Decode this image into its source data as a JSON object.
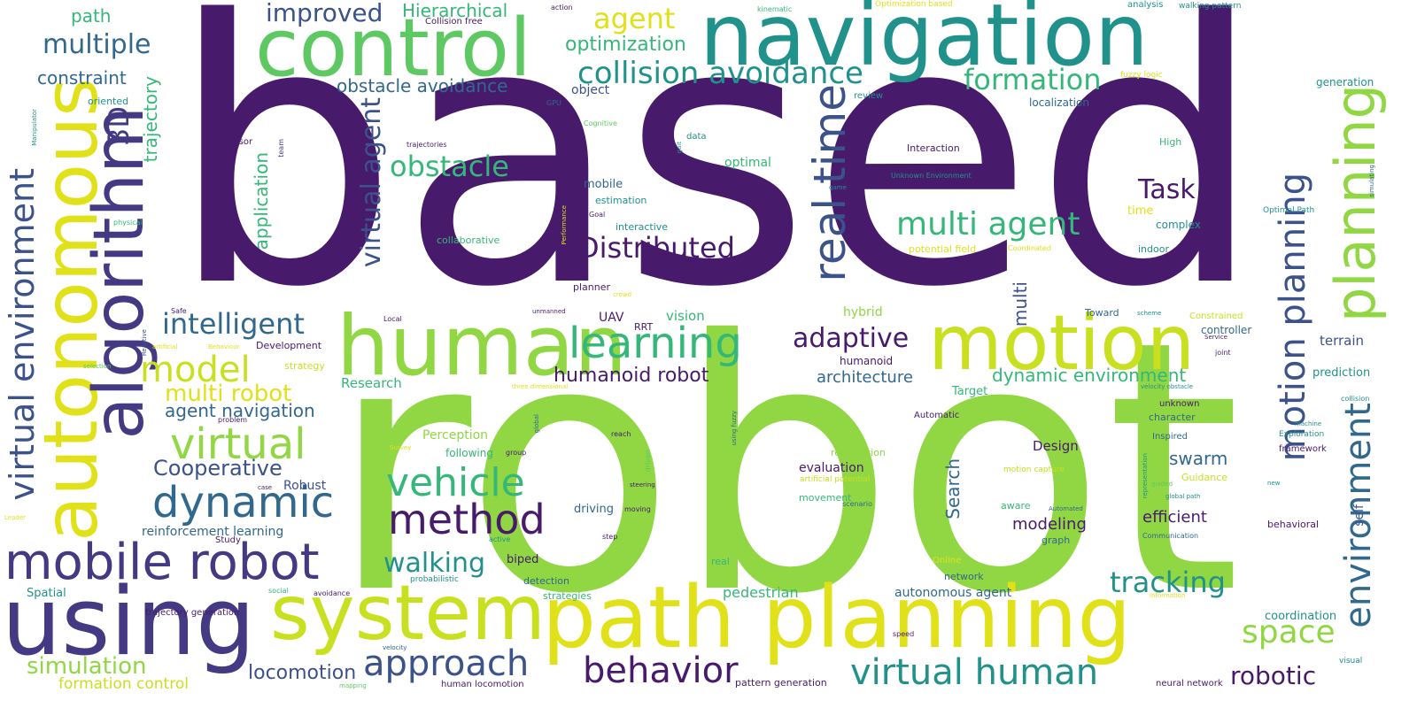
{
  "palette": {
    "dark_purple": "#481a6c",
    "indigo": "#443983",
    "slate_blue": "#3b528b",
    "steel": "#31688e",
    "teal": "#21918c",
    "sea_green": "#35b779",
    "green": "#5ec962",
    "lime": "#90d743",
    "yellow_green": "#c8e020",
    "yellow": "#e1e11a"
  },
  "words": [
    {
      "text": "based",
      "color": "dark_purple"
    },
    {
      "text": "robot",
      "color": "lime"
    },
    {
      "text": "navigation",
      "color": "teal"
    },
    {
      "text": "control",
      "color": "green"
    },
    {
      "text": "path planning",
      "color": "yellow"
    },
    {
      "text": "using",
      "color": "indigo"
    },
    {
      "text": "human",
      "color": "lime"
    },
    {
      "text": "system",
      "color": "yellow_green"
    },
    {
      "text": "motion",
      "color": "yellow_green"
    },
    {
      "text": "autonomous",
      "color": "yellow"
    },
    {
      "text": "algorithm",
      "color": "indigo"
    },
    {
      "text": "mobile robot",
      "color": "indigo"
    },
    {
      "text": "planning",
      "color": "lime"
    },
    {
      "text": "dynamic",
      "color": "steel"
    },
    {
      "text": "learning",
      "color": "sea_green"
    },
    {
      "text": "real time",
      "color": "slate_blue"
    },
    {
      "text": "method",
      "color": "dark_purple"
    },
    {
      "text": "virtual environment",
      "color": "slate_blue"
    },
    {
      "text": "motion planning",
      "color": "slate_blue"
    },
    {
      "text": "environment",
      "color": "steel"
    },
    {
      "text": "virtual",
      "color": "lime"
    },
    {
      "text": "behavior",
      "color": "dark_purple"
    },
    {
      "text": "approach",
      "color": "slate_blue"
    },
    {
      "text": "vehicle",
      "color": "sea_green"
    },
    {
      "text": "virtual human",
      "color": "teal"
    },
    {
      "text": "collision avoidance",
      "color": "teal"
    },
    {
      "text": "model",
      "color": "yellow_green"
    },
    {
      "text": "multi agent",
      "color": "sea_green"
    },
    {
      "text": "Distributed",
      "color": "dark_purple"
    },
    {
      "text": "adaptive",
      "color": "dark_purple"
    },
    {
      "text": "agent",
      "color": "yellow"
    },
    {
      "text": "multiple",
      "color": "steel"
    },
    {
      "text": "space",
      "color": "lime"
    },
    {
      "text": "tracking",
      "color": "teal"
    },
    {
      "text": "formation",
      "color": "sea_green"
    },
    {
      "text": "obstacle",
      "color": "sea_green"
    },
    {
      "text": "intelligent",
      "color": "steel"
    },
    {
      "text": "walking",
      "color": "teal"
    },
    {
      "text": "virtual agent",
      "color": "slate_blue"
    },
    {
      "text": "Cooperative",
      "color": "slate_blue"
    },
    {
      "text": "robotic",
      "color": "dark_purple"
    },
    {
      "text": "3D",
      "color": "indigo"
    },
    {
      "text": "Task",
      "color": "dark_purple"
    },
    {
      "text": "improved",
      "color": "slate_blue"
    },
    {
      "text": "multi robot",
      "color": "yellow"
    },
    {
      "text": "simulation",
      "color": "lime"
    },
    {
      "text": "locomotion",
      "color": "slate_blue"
    },
    {
      "text": "optimization",
      "color": "sea_green"
    },
    {
      "text": "humanoid robot",
      "color": "dark_purple"
    },
    {
      "text": "obstacle avoidance",
      "color": "steel"
    },
    {
      "text": "Hierarchical",
      "color": "sea_green"
    },
    {
      "text": "dynamic environment",
      "color": "sea_green"
    },
    {
      "text": "agent navigation",
      "color": "steel"
    },
    {
      "text": "architecture",
      "color": "steel"
    },
    {
      "text": "trajectory",
      "color": "sea_green"
    },
    {
      "text": "application",
      "color": "sea_green"
    },
    {
      "text": "constraint",
      "color": "steel"
    },
    {
      "text": "path",
      "color": "sea_green"
    },
    {
      "text": "Search",
      "color": "steel"
    },
    {
      "text": "multi",
      "color": "slate_blue"
    },
    {
      "text": "swarm",
      "color": "steel"
    },
    {
      "text": "modeling",
      "color": "dark_purple"
    },
    {
      "text": "efficient",
      "color": "dark_purple"
    },
    {
      "text": "formation control",
      "color": "yellow_green"
    },
    {
      "text": "reinforcement learning",
      "color": "steel"
    },
    {
      "text": "pedestrian",
      "color": "sea_green"
    },
    {
      "text": "autonomous agent",
      "color": "steel"
    },
    {
      "text": "Design",
      "color": "dark_purple"
    },
    {
      "text": "terrain",
      "color": "slate_blue"
    },
    {
      "text": "coordination",
      "color": "teal"
    },
    {
      "text": "Robust",
      "color": "slate_blue"
    },
    {
      "text": "vision",
      "color": "sea_green"
    },
    {
      "text": "hybrid",
      "color": "lime"
    },
    {
      "text": "Research",
      "color": "sea_green"
    },
    {
      "text": "evaluation",
      "color": "dark_purple"
    },
    {
      "text": "Perception",
      "color": "lime"
    },
    {
      "text": "optimal",
      "color": "sea_green"
    },
    {
      "text": "mobile",
      "color": "steel"
    },
    {
      "text": "UAV",
      "color": "dark_purple"
    },
    {
      "text": "self",
      "color": "slate_blue"
    },
    {
      "text": "biped",
      "color": "dark_purple"
    },
    {
      "text": "driving",
      "color": "steel"
    },
    {
      "text": "prediction",
      "color": "teal"
    },
    {
      "text": "object",
      "color": "slate_blue"
    },
    {
      "text": "controller",
      "color": "steel"
    },
    {
      "text": "generation",
      "color": "teal"
    },
    {
      "text": "following",
      "color": "sea_green"
    },
    {
      "text": "detection",
      "color": "steel"
    },
    {
      "text": "Spatial",
      "color": "teal"
    },
    {
      "text": "humanoid",
      "color": "dark_purple"
    },
    {
      "text": "Target",
      "color": "sea_green"
    },
    {
      "text": "localization",
      "color": "steel"
    },
    {
      "text": "time",
      "color": "yellow"
    },
    {
      "text": "complex",
      "color": "teal"
    },
    {
      "text": "indoor",
      "color": "teal"
    },
    {
      "text": "interactive",
      "color": "teal"
    },
    {
      "text": "estimation",
      "color": "teal"
    },
    {
      "text": "planner",
      "color": "dark_purple"
    },
    {
      "text": "graph",
      "color": "steel"
    },
    {
      "text": "network",
      "color": "steel"
    },
    {
      "text": "Interaction",
      "color": "dark_purple"
    },
    {
      "text": "High",
      "color": "sea_green"
    },
    {
      "text": "character",
      "color": "steel"
    },
    {
      "text": "unknown",
      "color": "dark_purple"
    },
    {
      "text": "movement",
      "color": "sea_green"
    },
    {
      "text": "recognition",
      "color": "lime"
    },
    {
      "text": "behavioral",
      "color": "dark_purple"
    },
    {
      "text": "Guidance",
      "color": "yellow_green"
    },
    {
      "text": "aware",
      "color": "sea_green"
    },
    {
      "text": "Toward",
      "color": "steel"
    },
    {
      "text": "collaborative",
      "color": "sea_green"
    },
    {
      "text": "RRT",
      "color": "dark_purple"
    },
    {
      "text": "Constrained",
      "color": "yellow_green"
    },
    {
      "text": "strategies",
      "color": "sea_green"
    },
    {
      "text": "strategy",
      "color": "yellow_green"
    },
    {
      "text": "Development",
      "color": "dark_purple"
    },
    {
      "text": "potential field",
      "color": "yellow"
    },
    {
      "text": "oriented",
      "color": "teal"
    },
    {
      "text": "real",
      "color": "sea_green"
    },
    {
      "text": "Online",
      "color": "yellow"
    },
    {
      "text": "trajectory generation",
      "color": "dark_purple"
    },
    {
      "text": "human locomotion",
      "color": "dark_purple"
    },
    {
      "text": "pattern generation",
      "color": "dark_purple"
    },
    {
      "text": "neural network",
      "color": "dark_purple"
    },
    {
      "text": "Collision free",
      "color": "dark_purple"
    },
    {
      "text": "sensor",
      "color": "dark_purple"
    },
    {
      "text": "data",
      "color": "teal"
    },
    {
      "text": "Automatic",
      "color": "dark_purple"
    },
    {
      "text": "Inspired",
      "color": "steel"
    },
    {
      "text": "Exploration",
      "color": "teal"
    },
    {
      "text": "framework",
      "color": "dark_purple"
    },
    {
      "text": "motion capture",
      "color": "yellow_green"
    },
    {
      "text": "Optimal Path",
      "color": "teal"
    },
    {
      "text": "artificial potential",
      "color": "yellow_green"
    },
    {
      "text": "probabilistic",
      "color": "teal"
    },
    {
      "text": "Study",
      "color": "dark_purple"
    },
    {
      "text": "review",
      "color": "teal"
    },
    {
      "text": "analysis",
      "color": "teal"
    },
    {
      "text": "walking pattern",
      "color": "teal"
    },
    {
      "text": "fuzzy logic",
      "color": "yellow"
    },
    {
      "text": "Optimization based",
      "color": "yellow"
    },
    {
      "text": "action",
      "color": "dark_purple"
    },
    {
      "text": "kinematic",
      "color": "sea_green"
    },
    {
      "text": "GPU",
      "color": "steel"
    },
    {
      "text": "Cognitive",
      "color": "green"
    },
    {
      "text": "trajectories",
      "color": "dark_purple"
    },
    {
      "text": "Unknown Environment",
      "color": "teal"
    },
    {
      "text": "Coordinated",
      "color": "yellow"
    },
    {
      "text": "heterogeneous",
      "color": "dark_purple"
    },
    {
      "text": "Goal",
      "color": "dark_purple"
    },
    {
      "text": "Local",
      "color": "dark_purple"
    },
    {
      "text": "unmanned",
      "color": "dark_purple"
    },
    {
      "text": "Safe",
      "color": "dark_purple"
    },
    {
      "text": "physical",
      "color": "sea_green"
    },
    {
      "text": "team",
      "color": "indigo"
    },
    {
      "text": "map",
      "color": "dark_purple"
    },
    {
      "text": "Manipulator",
      "color": "teal"
    },
    {
      "text": "selection",
      "color": "green"
    },
    {
      "text": "artificial",
      "color": "yellow"
    },
    {
      "text": "Behaviour",
      "color": "yellow"
    },
    {
      "text": "Reactive",
      "color": "slate_blue"
    },
    {
      "text": "problem",
      "color": "dark_purple"
    },
    {
      "text": "case",
      "color": "dark_purple"
    },
    {
      "text": "Leader",
      "color": "yellow"
    },
    {
      "text": "social",
      "color": "sea_green"
    },
    {
      "text": "avoidance",
      "color": "dark_purple"
    },
    {
      "text": "velocity",
      "color": "steel"
    },
    {
      "text": "mapping",
      "color": "green"
    },
    {
      "text": "speed",
      "color": "dark_purple"
    },
    {
      "text": "information",
      "color": "yellow"
    },
    {
      "text": "visual",
      "color": "teal"
    },
    {
      "text": "reach",
      "color": "dark_purple"
    },
    {
      "text": "group",
      "color": "dark_purple"
    },
    {
      "text": "global",
      "color": "steel"
    },
    {
      "text": "Survey",
      "color": "yellow"
    },
    {
      "text": "driven",
      "color": "green"
    },
    {
      "text": "using fuzzy",
      "color": "steel"
    },
    {
      "text": "steering",
      "color": "dark_purple"
    },
    {
      "text": "moving",
      "color": "dark_purple"
    },
    {
      "text": "active",
      "color": "teal"
    },
    {
      "text": "step",
      "color": "dark_purple"
    },
    {
      "text": "three dimensional",
      "color": "yellow"
    },
    {
      "text": "velocity obstacle",
      "color": "teal"
    },
    {
      "text": "joint",
      "color": "dark_purple"
    },
    {
      "text": "machine",
      "color": "teal"
    },
    {
      "text": "collision",
      "color": "teal"
    },
    {
      "text": "representation",
      "color": "teal"
    },
    {
      "text": "guided",
      "color": "green"
    },
    {
      "text": "new",
      "color": "teal"
    },
    {
      "text": "global path",
      "color": "teal"
    },
    {
      "text": "Communication",
      "color": "steel"
    },
    {
      "text": "Service",
      "color": "dark_purple"
    },
    {
      "text": "scheme",
      "color": "teal"
    },
    {
      "text": "scenario",
      "color": "steel"
    },
    {
      "text": "Automated",
      "color": "steel"
    },
    {
      "text": "crowd",
      "color": "yellow"
    },
    {
      "text": "game",
      "color": "teal"
    },
    {
      "text": "gait",
      "color": "teal"
    },
    {
      "text": "Performance",
      "color": "yellow"
    },
    {
      "text": "simulating",
      "color": "steel"
    }
  ]
}
